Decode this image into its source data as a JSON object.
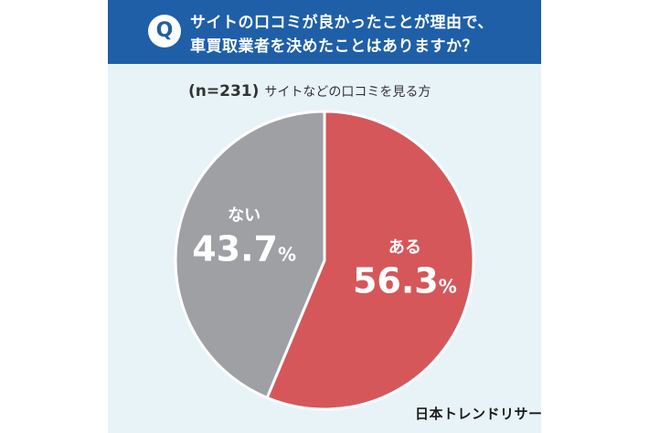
{
  "header": {
    "q_badge": "Q",
    "question_line1": "サイトの口コミが良かったことが理由で、",
    "question_line2": "車買取業者を決めたことはありますか？"
  },
  "subtitle": {
    "n_label": "(n=231)",
    "description": "サイトなどの口コミを見る方"
  },
  "chart_data": {
    "type": "pie",
    "title": "サイトの口コミが良かったことが理由で、車買取業者を決めたことはありますか？",
    "n": 231,
    "slices": [
      {
        "label": "ある",
        "value": 56.3,
        "display_number": "56.3",
        "unit": "%",
        "color": "#d5575a"
      },
      {
        "label": "ない",
        "value": 43.7,
        "display_number": "43.7",
        "unit": "%",
        "color": "#9fa0a3"
      }
    ]
  },
  "logo": {
    "text": "日本トレンドリサーチ"
  }
}
